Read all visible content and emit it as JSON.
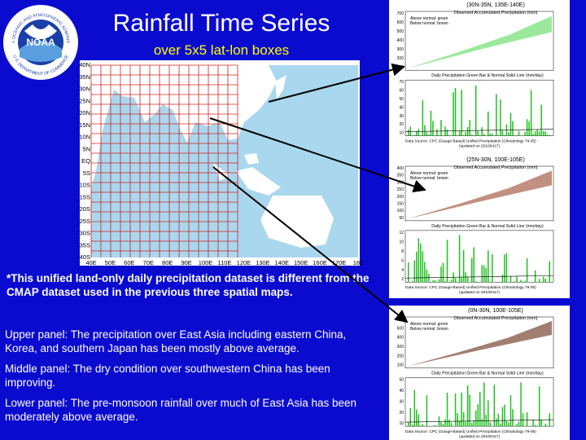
{
  "logo": {
    "text": "NOAA",
    "ring": "NATIONAL OCEANIC AND ATMOSPHERIC ADMINISTRATION",
    "ring2": "U.S. DEPARTMENT OF COMMERCE"
  },
  "title": "Rainfall Time Series",
  "subtitle": "over 5x5 lat-lon boxes",
  "map": {
    "lat_labels": [
      "40N",
      "35N",
      "30N",
      "25N",
      "20N",
      "15N",
      "10N",
      "5N",
      "EQ",
      "5S",
      "10S",
      "15S",
      "20S",
      "25S",
      "30S",
      "35S",
      "40S"
    ],
    "lon_labels": [
      "40E",
      "50E",
      "60E",
      "70E",
      "80E",
      "90E",
      "100E",
      "110E",
      "120E",
      "130E",
      "140E",
      "150E",
      "160E",
      "170E",
      "180"
    ]
  },
  "note": "*This unified land-only daily precipitation dataset is different from the CMAP dataset used in the previous three spatial maps.",
  "paragraphs": [
    "Upper panel: The precipitation over East Asia including eastern China, Korea, and southern Japan has been mostly above average.",
    "Middle panel: The dry condition over southwestern China has been improving.",
    "Lower panel: The pre-monsoon rainfall over much of East Asia has been moderately above average."
  ],
  "panels": [
    {
      "region": "(30N-35N, 135E-140E)",
      "upper_title": "Observed Accumulated Precipitation (mm)",
      "legend": [
        "Above normal: green",
        "Below normal: brown"
      ],
      "upper_ticks": [
        "700",
        "600",
        "500",
        "400",
        "300",
        "200",
        "100"
      ],
      "lower_title": "Daily Precipitation Green Bar & Normal Solid Line (mm/day)",
      "lower_ticks": [
        "70",
        "60",
        "50",
        "40",
        "30",
        "20",
        "10"
      ],
      "source": "Data Source: CPC (Gauge-Based) Unified Precipitation (Climatology 79-05)",
      "updated": "(updated on 20100417)"
    },
    {
      "region": "(25N-30N, 100E-105E)",
      "upper_title": "Observed Accumulated Precipitation (mm)",
      "legend": [
        "Above normal: green",
        "Below normal: brown"
      ],
      "upper_ticks": [
        "400",
        "350",
        "300",
        "250",
        "200",
        "150",
        "100",
        "50"
      ],
      "lower_title": "Daily Precipitation Green Bar & Normal Solid Line (mm/day)",
      "lower_ticks": [
        "12",
        "10",
        "8",
        "6",
        "4",
        "2"
      ],
      "source": "Data Source: CPC (Gauge-Based) Unified Precipitation (Climatology 79-05)",
      "updated": "(updated on 20100417)"
    },
    {
      "region": "(0N-30N, 100E-105E)",
      "upper_title": "Observed Accumulated Precipitation (mm)",
      "legend": [
        "Above normal: green",
        "Below normal: brown"
      ],
      "upper_ticks": [
        "600",
        "500",
        "400",
        "300",
        "200",
        "100"
      ],
      "lower_title": "Daily Precipitation Green Bar & Normal Solid Line (mm/day)",
      "lower_ticks": [
        "50",
        "40",
        "30",
        "20",
        "10"
      ],
      "source": "Data Source: CPC (Gauge-Based) Unified Precipitation (Climatology 79-05)",
      "updated": "(updated on 20100417)"
    }
  ]
}
